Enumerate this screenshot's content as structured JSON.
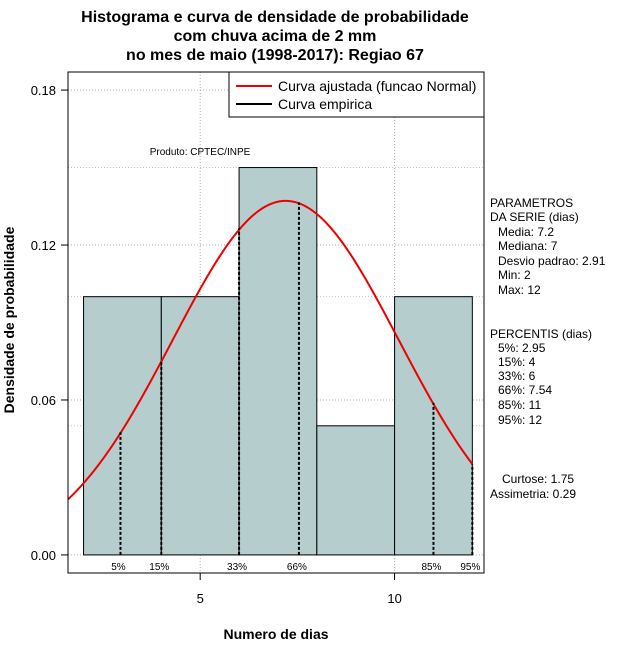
{
  "chart_data": {
    "type": "bar",
    "title_lines": [
      "Histograma e curva de densidade de probabilidade",
      "com chuva acima de 2 mm",
      "no mes de maio (1998-2017): Regiao 67"
    ],
    "xlabel": "Numero de dias",
    "ylabel": "Densidade de probabilidade",
    "xlim": [
      1.6,
      12.3
    ],
    "ylim": [
      -0.007,
      0.187
    ],
    "x_ticks": [
      5,
      10
    ],
    "y_ticks": [
      0.0,
      0.06,
      0.12,
      0.18
    ],
    "y_tick_labels": [
      "0.00",
      "0.06",
      "0.12",
      "0.18"
    ],
    "bins": [
      {
        "x0": 2,
        "x1": 4,
        "density": 0.1
      },
      {
        "x0": 4,
        "x1": 6,
        "density": 0.1
      },
      {
        "x0": 6,
        "x1": 8,
        "density": 0.15
      },
      {
        "x0": 8,
        "x1": 10,
        "density": 0.05
      },
      {
        "x0": 10,
        "x1": 12,
        "density": 0.1
      }
    ],
    "bar_color": "#b5cdcd",
    "grid": true,
    "normal_curve": {
      "mean": 7.2,
      "sd": 2.91,
      "color": "#ee0000",
      "x_from": 1.6,
      "x_to": 12.0
    },
    "percentile_lines": [
      {
        "label": "5%",
        "x": 2.95,
        "density": 0.0475
      },
      {
        "label": "15%",
        "x": 4,
        "density": 0.0753
      },
      {
        "label": "33%",
        "x": 6,
        "density": 0.1265
      },
      {
        "label": "66%",
        "x": 7.54,
        "density": 0.1365
      },
      {
        "label": "85%",
        "x": 11,
        "density": 0.0589
      },
      {
        "label": "95%",
        "x": 12,
        "density": 0.0351
      }
    ],
    "legend": {
      "position": "top-right",
      "entries": [
        {
          "label": "Curva ajustada (funcao Normal)",
          "color": "#ee0000"
        },
        {
          "label": "Curva empirica",
          "color": "#000000"
        }
      ]
    },
    "annotation": "Produto: CPTEC/INPE"
  },
  "side_panel": {
    "params_lines": [
      "PARAMETROS",
      "DA SERIE (dias)",
      "Media: 7.2",
      "Mediana: 7",
      "Desvio padrao: 2.91",
      "Min: 2",
      "Max: 12"
    ],
    "percentis_lines": [
      "PERCENTIS (dias)",
      "5%: 2.95",
      "15%: 4",
      "33%: 6",
      "66%: 7.54",
      "85%: 11",
      "95%: 12"
    ],
    "curtose": "Curtose: 1.75",
    "assimetria": "Assimetria: 0.29"
  }
}
